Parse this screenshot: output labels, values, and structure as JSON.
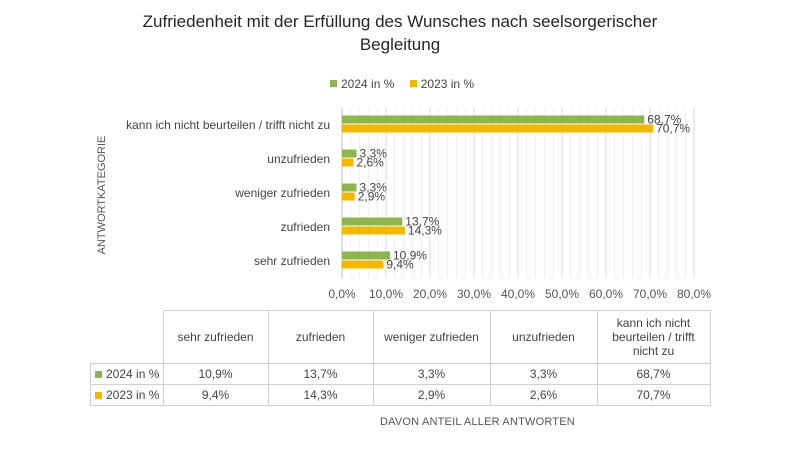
{
  "chart_data": {
    "type": "bar",
    "orientation": "horizontal",
    "title": "Zufriedenheit mit der Erfüllung des Wunsches nach seelsorgerischer Begleitung",
    "title_lines": [
      "Zufriedenheit mit der Erfüllung des Wunsches nach seelsorgerischer",
      "Begleitung"
    ],
    "categories": [
      "kann ich nicht beurteilen / trifft nicht zu",
      "unzufrieden",
      "weniger zufrieden",
      "zufrieden",
      "sehr zufrieden"
    ],
    "series": [
      {
        "name": "2024 in %",
        "color": "#8db44e",
        "values": [
          68.7,
          3.3,
          3.3,
          13.7,
          10.9
        ],
        "labels": [
          "68,7%",
          "3,3%",
          "3,3%",
          "13,7%",
          "10,9%"
        ]
      },
      {
        "name": "2023 in %",
        "color": "#f5b800",
        "values": [
          70.7,
          2.6,
          2.9,
          14.3,
          9.4
        ],
        "labels": [
          "70,7%",
          "2,6%",
          "2,9%",
          "14,3%",
          "9,4%"
        ]
      }
    ],
    "xlim": [
      0,
      80
    ],
    "x_ticks": [
      "0,0%",
      "10,0%",
      "20,0%",
      "30,0%",
      "40,0%",
      "50,0%",
      "60,0%",
      "70,0%",
      "80,0%"
    ],
    "ylabel": "ANTWORTKATEGORIE",
    "xlabel": "DAVON ANTEIL ALLER ANTWORTEN",
    "legend_position": "top",
    "grid": true,
    "data_table": {
      "columns": [
        "sehr zufrieden",
        "zufrieden",
        "weniger zufrieden",
        "unzufrieden",
        "kann ich nicht beurteilen / trifft nicht zu"
      ],
      "rows": [
        {
          "name": "2024 in %",
          "values": [
            "10,9%",
            "13,7%",
            "3,3%",
            "3,3%",
            "68,7%"
          ]
        },
        {
          "name": "2023 in %",
          "values": [
            "9,4%",
            "14,3%",
            "2,9%",
            "2,6%",
            "70,7%"
          ]
        }
      ]
    }
  }
}
